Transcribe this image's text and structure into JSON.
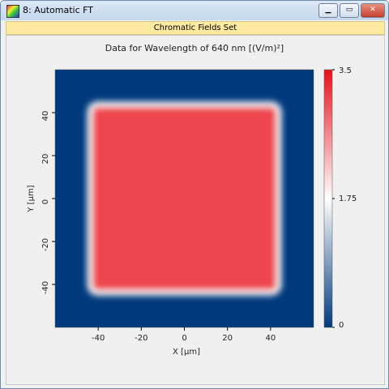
{
  "window": {
    "title": "8: Automatic FT",
    "header": "Chromatic Fields Set"
  },
  "chart_data": {
    "type": "heatmap",
    "title": "Data for Wavelength of 640 nm  [(V/m)²]",
    "xlabel": "X [µm]",
    "ylabel": "Y [µm]",
    "xlim": [
      -60,
      60
    ],
    "ylim": [
      -60,
      60
    ],
    "xticks": [
      -40,
      -20,
      0,
      20,
      40
    ],
    "yticks": [
      -40,
      -20,
      0,
      20,
      40
    ],
    "background_value": 0,
    "regions": [
      {
        "x0": -44,
        "x1": 44,
        "y0": -44,
        "y1": 44,
        "value": 3.1
      }
    ],
    "clim": [
      0,
      3.5
    ],
    "cticks": [
      0,
      1.75,
      3.5
    ],
    "colormap": [
      "#003a7d",
      "#ffffff",
      "#e8101a"
    ]
  }
}
